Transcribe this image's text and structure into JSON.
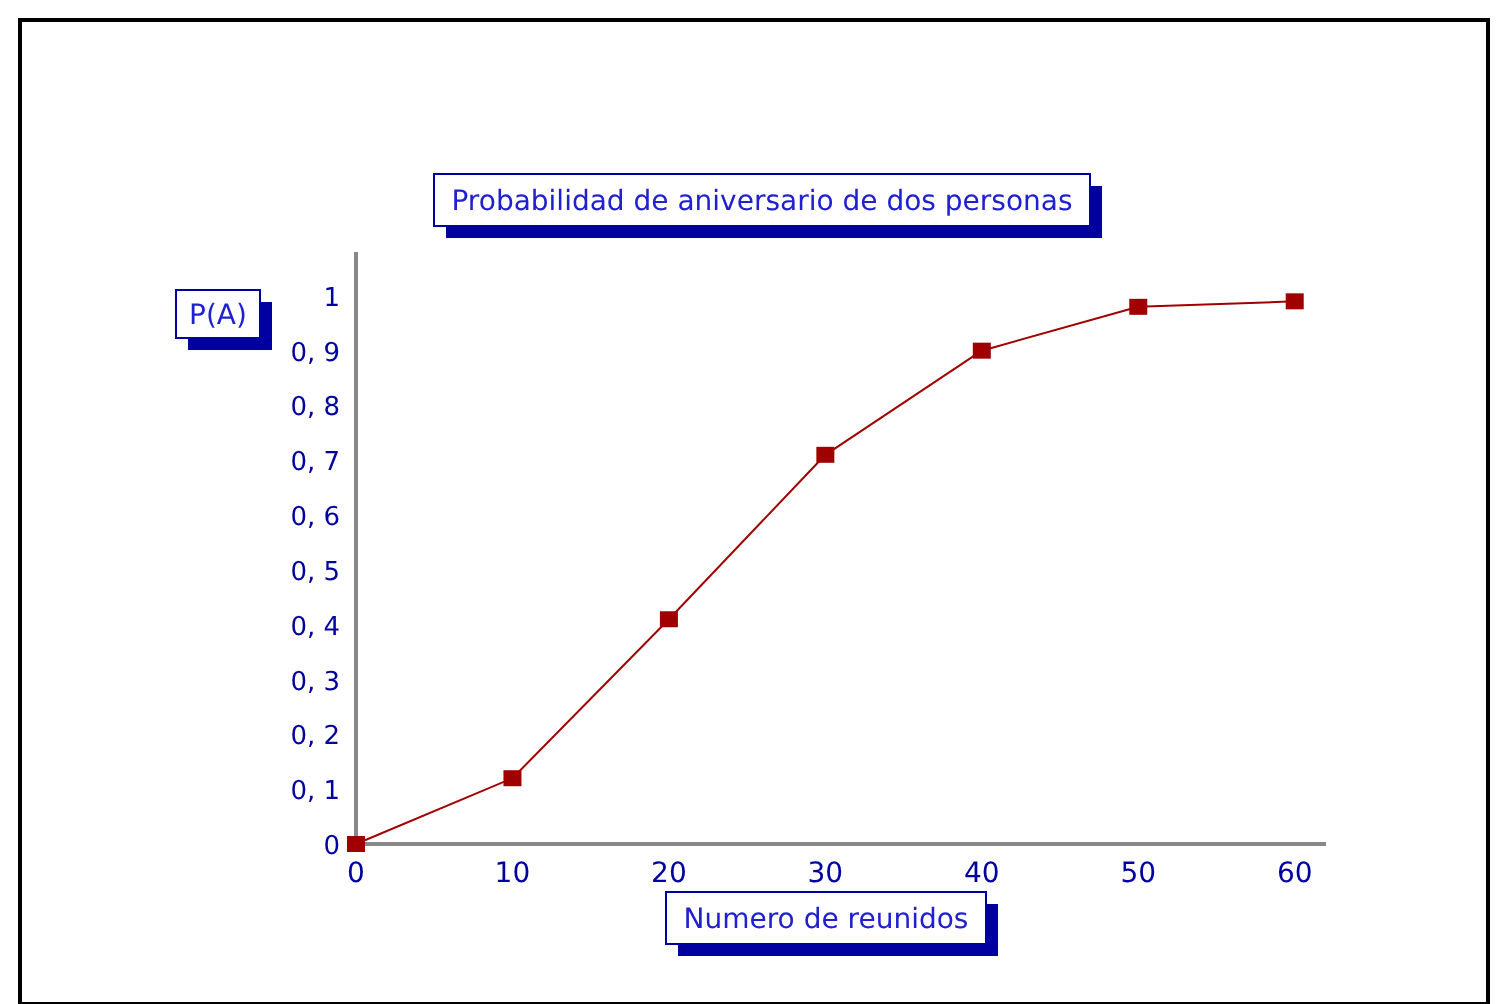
{
  "chart_data": {
    "type": "line",
    "title": "Probabilidad de aniversario de dos personas",
    "xlabel": "Numero de reunidos",
    "ylabel": "P(A)",
    "x": [
      0,
      10,
      20,
      30,
      40,
      50,
      60
    ],
    "series": [
      {
        "color": "#a00000",
        "values": [
          0,
          0.12,
          0.41,
          0.71,
          0.9,
          0.98,
          0.99
        ]
      }
    ],
    "xlim": [
      0,
      62
    ],
    "ylim": [
      0,
      1.08
    ],
    "xticks": [
      0,
      10,
      20,
      30,
      40,
      50,
      60
    ],
    "yticks": [
      0,
      {
        "value": 0.1,
        "label": "0, 1"
      },
      {
        "value": 0.2,
        "label": "0, 2"
      },
      {
        "value": 0.3,
        "label": "0, 3"
      },
      {
        "value": 0.4,
        "label": "0, 4"
      },
      {
        "value": 0.5,
        "label": "0, 5"
      },
      {
        "value": 0.6,
        "label": "0, 6"
      },
      {
        "value": 0.7,
        "label": "0, 7"
      },
      {
        "value": 0.8,
        "label": "0, 8"
      },
      {
        "value": 0.9,
        "label": "0, 9"
      },
      1
    ],
    "marker": "square",
    "line_style": "solid",
    "grid": false
  }
}
